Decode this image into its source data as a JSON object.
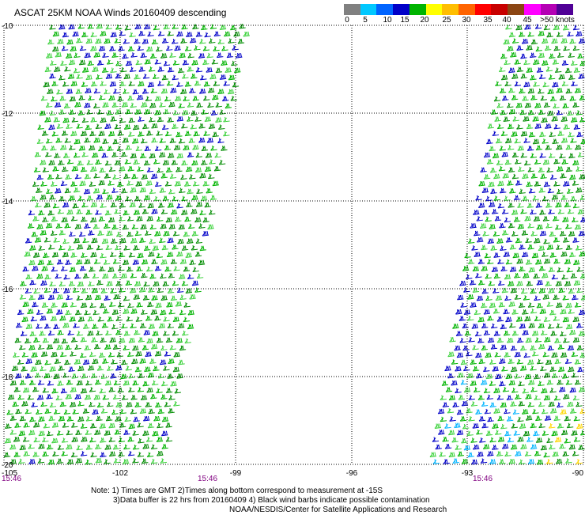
{
  "title": "ASCAT 25KM NOAA Winds 20160409 descending",
  "colorbar": {
    "colors": [
      "#808080",
      "#00c8ff",
      "#0064ff",
      "#0000c8",
      "#00b400",
      "#ffff00",
      "#ffbe00",
      "#ff6400",
      "#ff0000",
      "#c80000",
      "#8b4513",
      "#ff00ff",
      "#b400b4",
      "#500096"
    ],
    "labels": [
      "0",
      "5",
      "10",
      "15",
      "20",
      "25",
      "30",
      "35",
      "40",
      "45",
      ">50 knots"
    ]
  },
  "axes": {
    "lat_labels": [
      "-10",
      "-12",
      "-14",
      "-16",
      "-18",
      "-20"
    ],
    "lon_labels": [
      "-105",
      "-102",
      "-99",
      "-96",
      "-93",
      "-90"
    ],
    "time_labels": [
      "15:46",
      "15:46",
      "15:46"
    ]
  },
  "wind_colors": {
    "light_green": "#3cd23c",
    "green": "#00b400",
    "dark_green": "#008c00",
    "blue": "#0000c8",
    "cyan": "#00b4ff",
    "yellow": "#ffd700"
  },
  "note": {
    "line1": "Note: 1) Times are GMT 2)Times along bottom correspond to measurement at -15S",
    "line2": "3)Data buffer is 22 hrs from 20160409 4) Black wind barbs indicate possible contamination",
    "line3": "NOAA/NESDIS/Center for Satellite Applications and Research"
  }
}
